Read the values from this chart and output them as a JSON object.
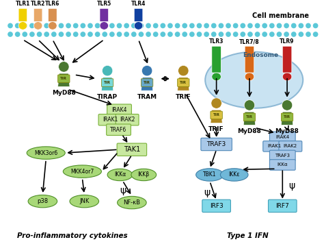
{
  "bg_color": "#ffffff",
  "dot_color": "#5bc8d8",
  "left_label": "Pro-inflammatory cytokines",
  "right_label": "Type 1 IFN",
  "cell_membrane_label": "Cell membrane",
  "endosome_label": "Endosome",
  "tlr_colors": {
    "TLR1": "#f0d000",
    "TLR2": "#e8a868",
    "TLR6": "#d89050",
    "TLR5": "#7030a0",
    "TLR4": "#1040a0",
    "TLR3": "#28a030",
    "TLR7/8": "#d86818",
    "TLR9": "#c02020"
  },
  "green_body": "#4a7830",
  "teal_body": "#48b8b8",
  "steel_body": "#3878b0",
  "gold_body": "#b08820",
  "tir_green": "#90b840",
  "tir_teal": "#78d8d8",
  "tir_steel": "#68a8c8",
  "tir_gold": "#d8c040",
  "green_box": "#c8e8a0",
  "green_box_edge": "#78b038",
  "blue_box": "#a8c8e8",
  "blue_box_edge": "#5088b8",
  "blue_oval": "#70b8d8",
  "blue_oval_edge": "#4080a8",
  "green_oval": "#a8d878",
  "green_oval_edge": "#509028",
  "endosome_fill": "#c0dff0",
  "endosome_edge": "#80b0d0",
  "irf_box": "#80d8e8",
  "irf_box_edge": "#40a0b8"
}
